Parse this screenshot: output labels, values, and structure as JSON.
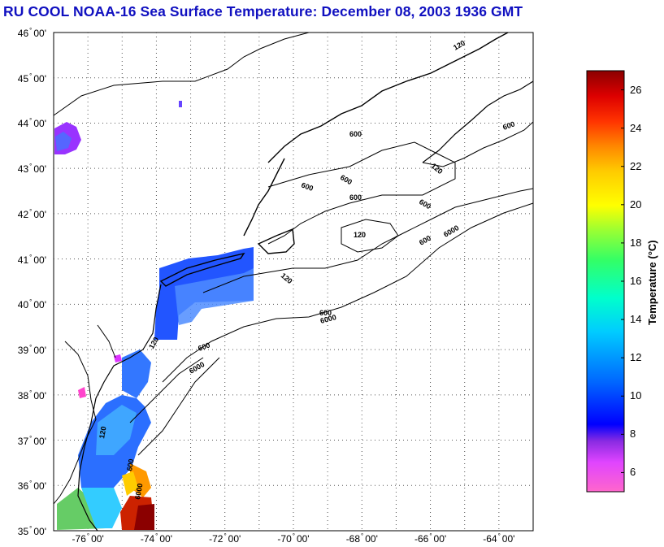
{
  "title": "RU COOL  NOAA-16  Sea Surface Temperature:  December 08, 2003 1936 GMT",
  "latitude_labels": [
    "46",
    "45",
    "44",
    "43",
    "42",
    "41",
    "40",
    "39",
    "38",
    "37",
    "36",
    "35"
  ],
  "longitude_labels": [
    "-76",
    "-74",
    "-72",
    "-70",
    "-68",
    "-66",
    "-64"
  ],
  "minutes_label": "00'",
  "map_extent": {
    "lon_min": -77,
    "lon_max": -63,
    "lat_min": 35,
    "lat_max": 46
  },
  "grid": "dotted",
  "colorbar": {
    "title": "Temperature (°C)",
    "range": [
      5,
      27
    ],
    "tick_labels": [
      "26",
      "24",
      "22",
      "20",
      "18",
      "16",
      "14",
      "12",
      "10",
      "8",
      "6"
    ],
    "colors": [
      "#ff66cc",
      "#e044ff",
      "#8a2be2",
      "#0000ff",
      "#0066ff",
      "#00ccff",
      "#00ffcc",
      "#33ff66",
      "#99ff33",
      "#ffff00",
      "#ffcc00",
      "#ff8800",
      "#ff3300",
      "#dd0000",
      "#8b0000"
    ]
  },
  "isobath_labels": [
    "120",
    "600",
    "6000"
  ],
  "colors": {
    "title": "#1010c0",
    "coast": "#000000",
    "land": "#ffffff"
  }
}
